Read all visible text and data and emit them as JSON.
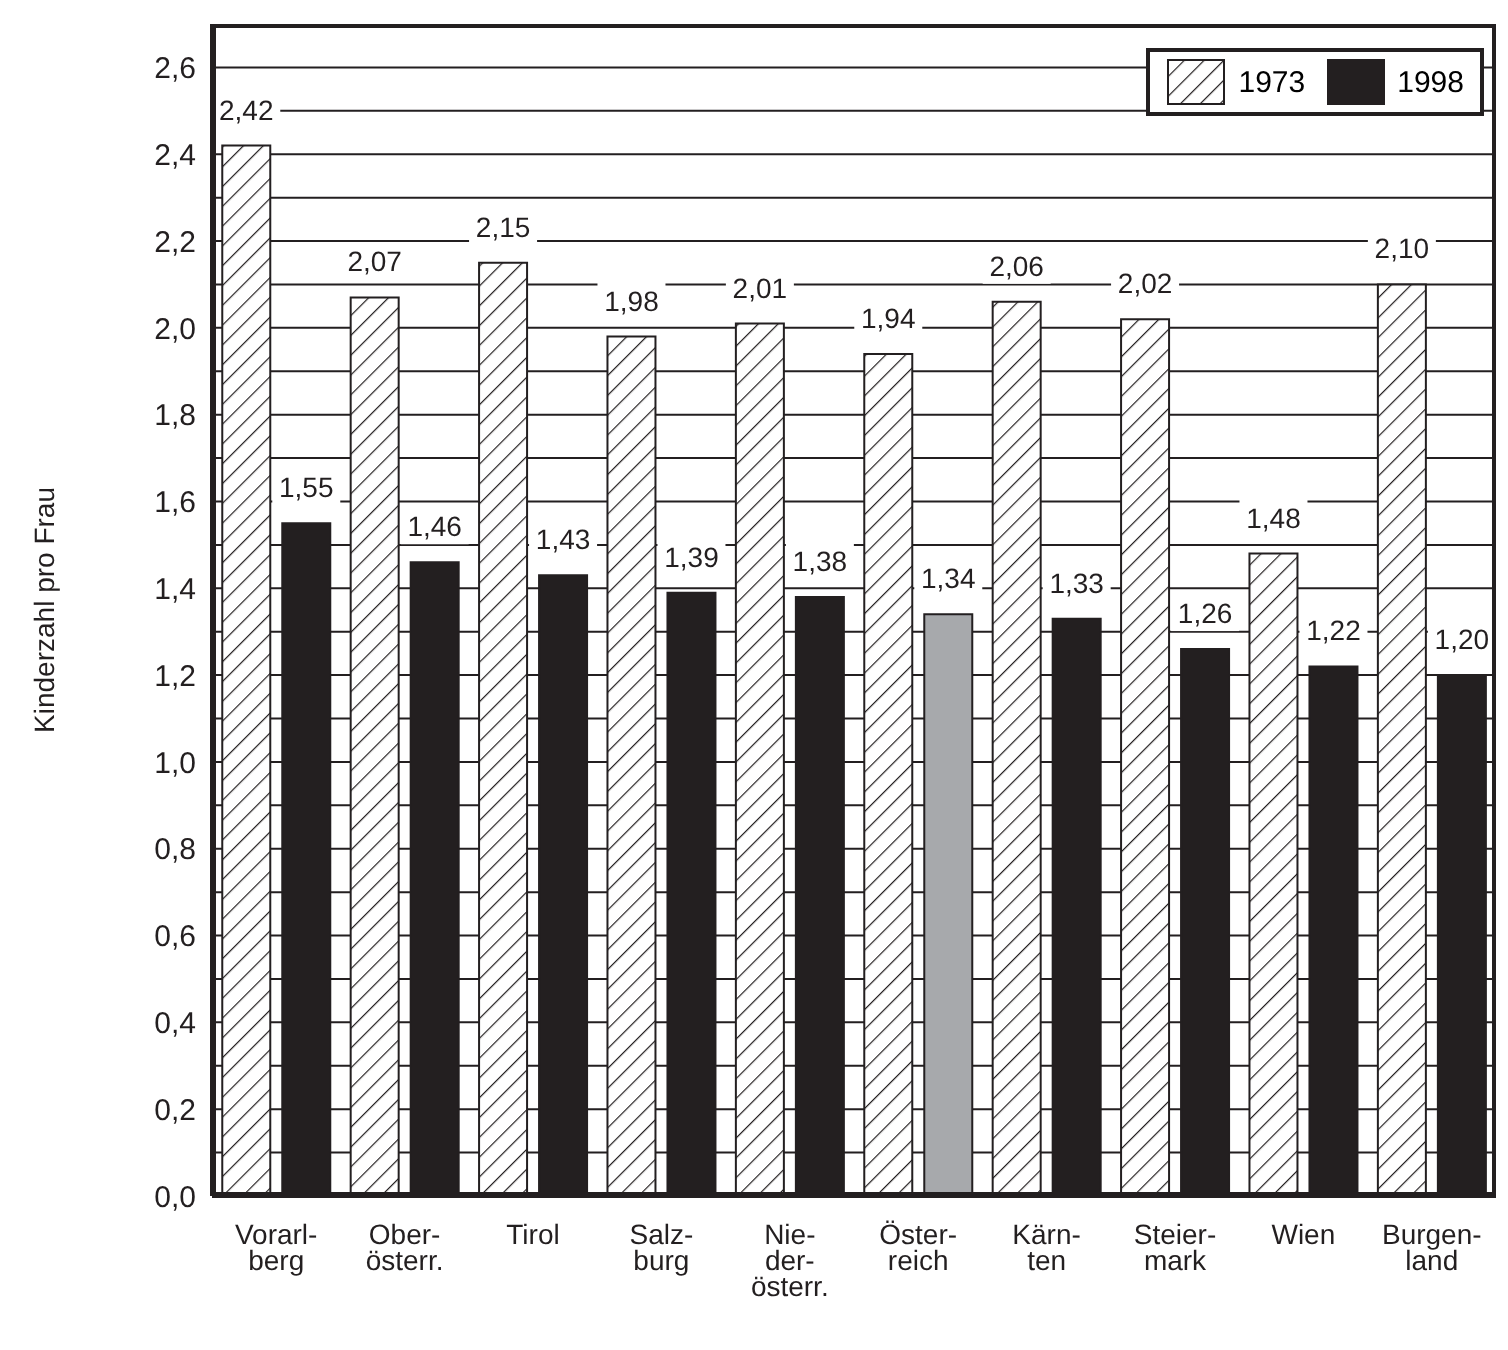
{
  "chart_data": {
    "type": "bar",
    "ylabel": "Kinderzahl pro Frau",
    "categories": [
      "Vorarl-\nberg",
      "Ober-\nösterr.",
      "Tirol",
      "Salz-\nburg",
      "Nie-\nder-\nösterr.",
      "Öster-\nreich",
      "Kärn-\nten",
      "Steier-\nmark",
      "Wien",
      "Burgen-\nland"
    ],
    "series": [
      {
        "name": "1973",
        "color": "#231f20",
        "values": [
          2.42,
          2.07,
          2.15,
          1.98,
          2.01,
          1.94,
          2.06,
          2.02,
          1.48,
          2.1
        ],
        "value_labels": [
          "2,42",
          "2,07",
          "2,15",
          "1,98",
          "2,01",
          "1,94",
          "2,06",
          "2,02",
          "1,48",
          "2,10"
        ]
      },
      {
        "name": "1998",
        "color": "#231f20",
        "colors": [
          "#231f20",
          "#231f20",
          "#231f20",
          "#231f20",
          "#231f20",
          "#a7a9ac",
          "#231f20",
          "#231f20",
          "#231f20",
          "#231f20"
        ],
        "values": [
          1.55,
          1.46,
          1.43,
          1.39,
          1.38,
          1.34,
          1.33,
          1.26,
          1.22,
          1.2
        ],
        "value_labels": [
          "1,55",
          "1,46",
          "1,43",
          "1,39",
          "1,38",
          "1,34",
          "1,33",
          "1,26",
          "1,22",
          "1,20"
        ]
      }
    ],
    "ylim": [
      0,
      2.7
    ],
    "yticks": [
      {
        "value": 0,
        "label": "0,0"
      },
      {
        "value": 0.1,
        "label": null
      },
      {
        "value": 0.2,
        "label": "0,2"
      },
      {
        "value": 0.3,
        "label": null
      },
      {
        "value": 0.4,
        "label": "0,4"
      },
      {
        "value": 0.5,
        "label": null
      },
      {
        "value": 0.6,
        "label": "0,6"
      },
      {
        "value": 0.7,
        "label": null
      },
      {
        "value": 0.8,
        "label": "0,8"
      },
      {
        "value": 0.9,
        "label": null
      },
      {
        "value": 1.0,
        "label": "1,0"
      },
      {
        "value": 1.1,
        "label": null
      },
      {
        "value": 1.2,
        "label": "1,2"
      },
      {
        "value": 1.3,
        "label": null
      },
      {
        "value": 1.4,
        "label": "1,4"
      },
      {
        "value": 1.5,
        "label": null
      },
      {
        "value": 1.6,
        "label": "1,6"
      },
      {
        "value": 1.7,
        "label": null
      },
      {
        "value": 1.8,
        "label": "1,8"
      },
      {
        "value": 1.9,
        "label": null
      },
      {
        "value": 2.0,
        "label": "2,0"
      },
      {
        "value": 2.1,
        "label": null
      },
      {
        "value": 2.2,
        "label": "2,2"
      },
      {
        "value": 2.3,
        "label": null
      },
      {
        "value": 2.4,
        "label": "2,4"
      },
      {
        "value": 2.5,
        "label": null
      },
      {
        "value": 2.6,
        "label": "2,6"
      }
    ],
    "grid": "y",
    "legend": "top right"
  }
}
